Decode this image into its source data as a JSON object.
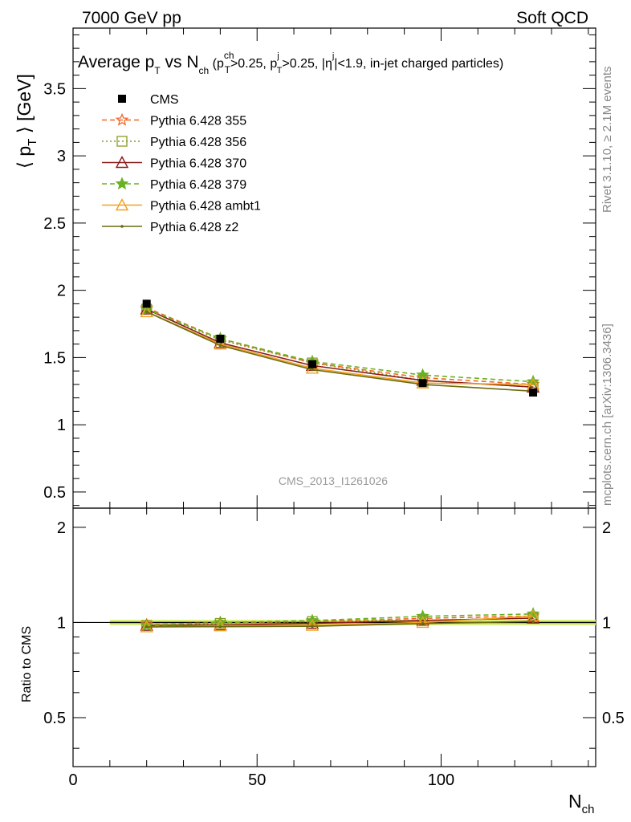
{
  "header": {
    "left": "7000 GeV pp",
    "right": "Soft QCD"
  },
  "side": {
    "rivet": "Rivet 3.1.10, ≥ 2.1M events",
    "mcplots": "mcplots.cern.ch [arXiv:1306.3436]"
  },
  "watermark": "CMS_2013_I1261026",
  "plot_title": {
    "p1": "Average p",
    "s1": "T",
    "p2": " vs N",
    "s2": "ch",
    "p3": " (p",
    "s3a": "ch",
    "s3b": "T",
    "p4": ">0.25, p",
    "s4a": "j",
    "s4b": "T",
    "p5": ">0.25, |η",
    "s5": "j",
    "p6": "|<1.9, in-jet charged particles)"
  },
  "y_label": {
    "a": "⟨ p",
    "sub": "T",
    "b": " ⟩ [GeV]"
  },
  "ratio_label": "Ratio to CMS",
  "x_label": {
    "main": "N",
    "sub": "ch"
  },
  "chart_data": {
    "type": "line",
    "x": [
      20,
      40,
      65,
      95,
      125
    ],
    "xlim": [
      0,
      142
    ],
    "ylim": [
      0.38,
      3.95
    ],
    "ratio_ylim": [
      0.35,
      2.3
    ],
    "x_ticks": [
      "0",
      "50",
      "100"
    ],
    "y_ticks": [
      "0.5",
      "1",
      "1.5",
      "2",
      "2.5",
      "3",
      "3.5"
    ],
    "ratio_ticks": [
      "0.5",
      "1",
      "2"
    ],
    "data": {
      "name": "CMS",
      "color": "#000000",
      "values": [
        1.9,
        1.64,
        1.45,
        1.31,
        1.24
      ]
    },
    "series": [
      {
        "name": "Pythia 6.428 355",
        "color": "#f26522",
        "dash": "6,4",
        "marker": "star-open",
        "values": [
          1.87,
          1.64,
          1.46,
          1.35,
          1.3
        ]
      },
      {
        "name": "Pythia 6.428 356",
        "color": "#8a9a20",
        "dash": "2,3",
        "marker": "square-open",
        "values": [
          1.86,
          1.63,
          1.46,
          1.33,
          1.28
        ]
      },
      {
        "name": "Pythia 6.428 370",
        "color": "#8b1a1a",
        "dash": "",
        "marker": "triangle-open",
        "values": [
          1.86,
          1.61,
          1.44,
          1.33,
          1.28
        ]
      },
      {
        "name": "Pythia 6.428 379",
        "color": "#6ab023",
        "dash": "6,4",
        "marker": "star-filled",
        "values": [
          1.86,
          1.64,
          1.47,
          1.37,
          1.32
        ]
      },
      {
        "name": "Pythia 6.428 ambt1",
        "color": "#f0a020",
        "dash": "",
        "marker": "triangle-open",
        "values": [
          1.84,
          1.6,
          1.42,
          1.31,
          1.3
        ]
      },
      {
        "name": "Pythia 6.428 z2",
        "color": "#6b6b10",
        "dash": "",
        "marker": "dot",
        "values": [
          1.84,
          1.59,
          1.41,
          1.3,
          1.25
        ]
      }
    ]
  }
}
